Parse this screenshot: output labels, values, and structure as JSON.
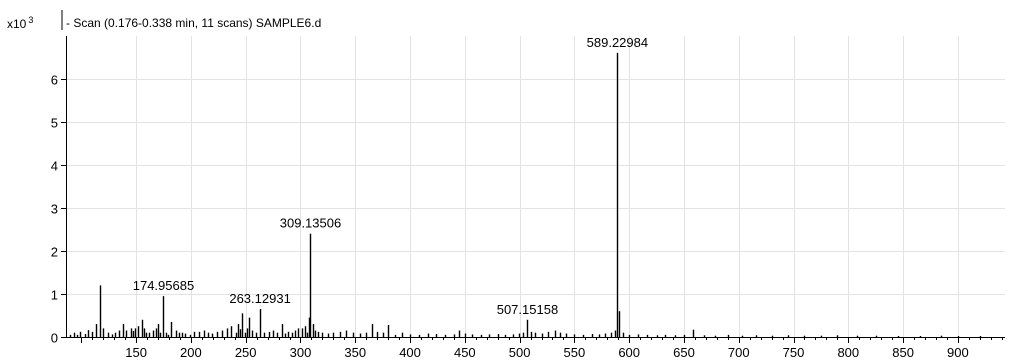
{
  "header": {
    "multiplier_base": "x10",
    "multiplier_exp": "3",
    "scan_title": "- Scan (0.176-0.338 min, 11 scans) SAMPLE6.d"
  },
  "chart_data": {
    "type": "bar",
    "title": "- Scan (0.176-0.338 min, 11 scans) SAMPLE6.d",
    "xlabel": "",
    "ylabel": "",
    "y_multiplier": "x10^3",
    "xlim": [
      86,
      943
    ],
    "ylim": [
      0,
      6.9
    ],
    "grid": true,
    "x_ticks": [
      150,
      200,
      250,
      300,
      350,
      400,
      450,
      500,
      550,
      600,
      650,
      700,
      750,
      800,
      850,
      900
    ],
    "x_tick_labels": [
      "150",
      "200",
      "250",
      "300",
      "350",
      "400",
      "450",
      "500",
      "550",
      "600",
      "650",
      "700",
      "750",
      "800",
      "850",
      "900"
    ],
    "y_ticks": [
      0,
      1,
      2,
      3,
      4,
      5,
      6
    ],
    "y_tick_labels": [
      "0",
      "1",
      "2",
      "3",
      "4",
      "5",
      "6"
    ],
    "annotations": [
      {
        "label": "589.22984",
        "x": 589.23,
        "y": 6.6
      },
      {
        "label": "309.13506",
        "x": 309.14,
        "y": 2.4
      },
      {
        "label": "174.95685",
        "x": 174.96,
        "y": 0.95
      },
      {
        "label": "263.12931",
        "x": 263.13,
        "y": 0.65
      },
      {
        "label": "507.15158",
        "x": 507.15,
        "y": 0.4
      }
    ],
    "peaks": {
      "x": [
        90,
        93,
        96,
        99,
        103,
        106,
        110,
        113,
        117,
        120,
        124,
        128,
        131,
        134,
        138,
        141,
        145,
        147,
        149,
        152,
        155,
        157,
        159,
        162,
        165,
        168,
        170,
        172,
        174.96,
        177,
        179,
        182,
        186,
        189,
        192,
        195,
        199,
        203,
        207,
        212,
        216,
        219,
        224,
        228,
        233,
        237,
        241,
        243,
        245,
        247,
        249,
        251,
        253,
        256,
        259,
        263.13,
        267,
        271,
        275,
        279,
        283,
        286,
        289,
        292,
        295,
        298,
        301,
        304,
        306,
        308,
        309.14,
        311,
        313,
        316,
        320,
        325,
        330,
        336,
        342,
        348,
        354,
        360,
        365,
        370,
        375,
        380,
        386,
        393,
        400,
        408,
        416,
        424,
        432,
        440,
        445,
        450,
        457,
        465,
        472,
        480,
        487,
        494,
        499,
        503,
        507.15,
        510,
        514,
        520,
        526,
        532,
        537,
        542,
        550,
        558,
        566,
        572,
        578,
        583,
        587,
        589.23,
        591,
        594,
        600,
        608,
        616,
        625,
        633,
        642,
        650,
        658,
        668,
        678,
        690,
        703,
        716,
        730,
        745,
        760,
        775,
        790,
        808,
        825,
        845,
        865,
        885,
        900,
        920
      ],
      "y": [
        0.05,
        0.1,
        0.05,
        0.12,
        0.07,
        0.16,
        0.12,
        0.3,
        1.2,
        0.2,
        0.1,
        0.06,
        0.1,
        0.15,
        0.3,
        0.15,
        0.2,
        0.14,
        0.2,
        0.25,
        0.4,
        0.2,
        0.1,
        0.1,
        0.15,
        0.2,
        0.3,
        0.1,
        0.95,
        0.1,
        0.05,
        0.35,
        0.15,
        0.1,
        0.1,
        0.08,
        0.05,
        0.12,
        0.12,
        0.15,
        0.1,
        0.08,
        0.12,
        0.15,
        0.2,
        0.25,
        0.1,
        0.3,
        0.18,
        0.55,
        0.1,
        0.2,
        0.45,
        0.15,
        0.1,
        0.65,
        0.1,
        0.12,
        0.15,
        0.1,
        0.3,
        0.08,
        0.12,
        0.1,
        0.15,
        0.2,
        0.2,
        0.25,
        0.1,
        0.45,
        2.4,
        0.3,
        0.15,
        0.12,
        0.1,
        0.08,
        0.1,
        0.12,
        0.15,
        0.1,
        0.08,
        0.1,
        0.3,
        0.12,
        0.1,
        0.28,
        0.05,
        0.1,
        0.06,
        0.05,
        0.08,
        0.07,
        0.05,
        0.06,
        0.15,
        0.08,
        0.06,
        0.05,
        0.06,
        0.07,
        0.05,
        0.06,
        0.08,
        0.1,
        0.4,
        0.12,
        0.1,
        0.08,
        0.12,
        0.15,
        0.1,
        0.08,
        0.06,
        0.05,
        0.07,
        0.06,
        0.08,
        0.1,
        0.15,
        6.6,
        0.6,
        0.1,
        0.05,
        0.06,
        0.05,
        0.04,
        0.05,
        0.04,
        0.05,
        0.17,
        0.04,
        0.03,
        0.05,
        0.03,
        0.04,
        0.03,
        0.04,
        0.03,
        0.03,
        0.04,
        0.03,
        0.03,
        0.02,
        0.02,
        0.03,
        0.02,
        0.02
      ]
    }
  }
}
